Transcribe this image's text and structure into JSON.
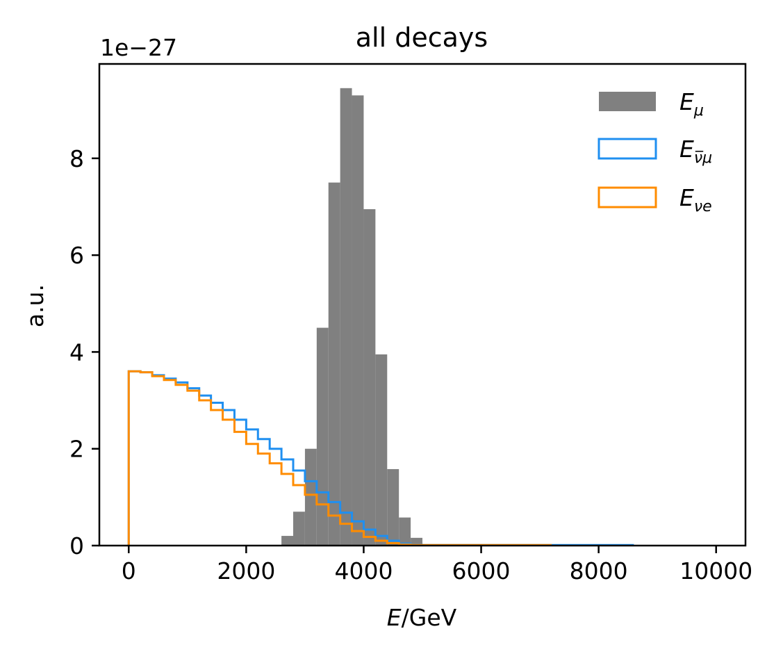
{
  "chart_data": {
    "type": "histogram",
    "title": "all decays",
    "xlabel_italic": "E",
    "xlabel_rest": "/GeV",
    "ylabel": "a.u.",
    "y_offset_text": "1e−27",
    "y_multiplier": 1e-27,
    "xlim": [
      -500,
      10500
    ],
    "ylim": [
      0,
      9.95
    ],
    "xticks": [
      0,
      2000,
      4000,
      6000,
      8000,
      10000
    ],
    "xtick_labels": [
      "0",
      "2000",
      "4000",
      "6000",
      "8000",
      "10000"
    ],
    "yticks": [
      0,
      2,
      4,
      6,
      8
    ],
    "ytick_labels": [
      "0",
      "2",
      "4",
      "6",
      "8"
    ],
    "grid": false,
    "legend_position": "top-right",
    "series": [
      {
        "key": "mu",
        "name_main": "E",
        "name_sub": "μ",
        "style": "filled",
        "color": "#808080",
        "bin_start": 2600,
        "bin_width": 200,
        "values": [
          0.2,
          0.7,
          2.0,
          4.5,
          7.5,
          9.45,
          9.3,
          6.95,
          3.95,
          1.58,
          0.58,
          0.16,
          0.02,
          0.01
        ]
      },
      {
        "key": "numubar",
        "name_main": "E",
        "name_sub": "ν̅μ",
        "style": "step",
        "color": "#1f8ff0",
        "bin_start": 0,
        "bin_width": 200,
        "values": [
          3.6,
          3.58,
          3.52,
          3.45,
          3.37,
          3.25,
          3.1,
          2.95,
          2.8,
          2.6,
          2.4,
          2.2,
          2.0,
          1.78,
          1.55,
          1.33,
          1.1,
          0.9,
          0.68,
          0.5,
          0.33,
          0.2,
          0.1,
          0.04,
          0.015,
          0.01,
          0.01,
          0.01,
          0.01,
          0.01,
          0.01,
          0.01,
          0.01,
          0.01,
          0.01,
          0.01,
          0.01,
          0.01,
          0.01,
          0.01,
          0.01,
          0.01,
          0.01
        ],
        "tail_end": 8600
      },
      {
        "key": "nue",
        "name_main": "E",
        "name_sub": "νe",
        "style": "step",
        "color": "#ff8c00",
        "bin_start": 0,
        "bin_width": 200,
        "values": [
          3.6,
          3.58,
          3.5,
          3.42,
          3.32,
          3.2,
          3.0,
          2.8,
          2.6,
          2.35,
          2.1,
          1.9,
          1.7,
          1.48,
          1.25,
          1.05,
          0.85,
          0.62,
          0.45,
          0.3,
          0.18,
          0.1,
          0.05,
          0.02,
          0.01,
          0.01,
          0.01,
          0.01,
          0.01,
          0.01,
          0.01,
          0.01,
          0.01,
          0.01,
          0.01,
          0.01
        ],
        "tail_end": 7200
      }
    ]
  }
}
